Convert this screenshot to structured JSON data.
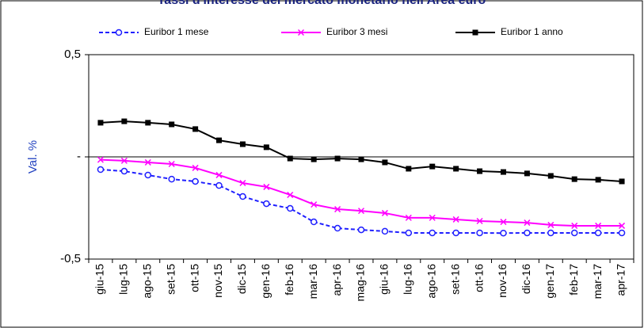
{
  "chart_data": {
    "type": "line",
    "title": "Tassi d'interesse del mercato monetario nell'Area euro",
    "y_label": "Val. %",
    "categories": [
      "giu-15",
      "lug-15",
      "ago-15",
      "set-15",
      "ott-15",
      "nov-15",
      "dic-15",
      "gen-16",
      "feb-16",
      "mar-16",
      "apr-16",
      "mag-16",
      "giu-16",
      "lug-16",
      "ago-16",
      "set-16",
      "ott-16",
      "nov-16",
      "dic-16",
      "gen-17",
      "feb-17",
      "mar-17",
      "apr-17"
    ],
    "series": [
      {
        "name": "Euribor 1 mese",
        "color": "#1f1fff",
        "dash": true,
        "marker": "circle",
        "values": [
          -0.062,
          -0.07,
          -0.089,
          -0.109,
          -0.12,
          -0.14,
          -0.194,
          -0.229,
          -0.252,
          -0.318,
          -0.349,
          -0.357,
          -0.364,
          -0.372,
          -0.372,
          -0.372,
          -0.372,
          -0.373,
          -0.372,
          -0.372,
          -0.372,
          -0.372,
          -0.372
        ]
      },
      {
        "name": "Euribor 3 mesi",
        "color": "#ff00ff",
        "dash": false,
        "marker": "x",
        "values": [
          -0.014,
          -0.019,
          -0.027,
          -0.035,
          -0.054,
          -0.089,
          -0.128,
          -0.147,
          -0.186,
          -0.233,
          -0.256,
          -0.264,
          -0.275,
          -0.298,
          -0.298,
          -0.306,
          -0.314,
          -0.318,
          -0.322,
          -0.333,
          -0.337,
          -0.337,
          -0.337
        ]
      },
      {
        "name": "Euribor 1 anno",
        "color": "#000000",
        "dash": false,
        "marker": "square",
        "values": [
          0.167,
          0.174,
          0.167,
          0.159,
          0.136,
          0.081,
          0.062,
          0.047,
          -0.008,
          -0.012,
          -0.008,
          -0.012,
          -0.027,
          -0.058,
          -0.047,
          -0.058,
          -0.07,
          -0.074,
          -0.081,
          -0.093,
          -0.109,
          -0.112,
          -0.12
        ]
      }
    ],
    "ylim": [
      -0.5,
      0.5
    ],
    "yticks": [
      {
        "value": 0.5,
        "label": "0,5"
      },
      {
        "value": 0,
        "label": "-"
      },
      {
        "value": -0.5,
        "label": "-0,5"
      }
    ],
    "zero_line": true
  }
}
